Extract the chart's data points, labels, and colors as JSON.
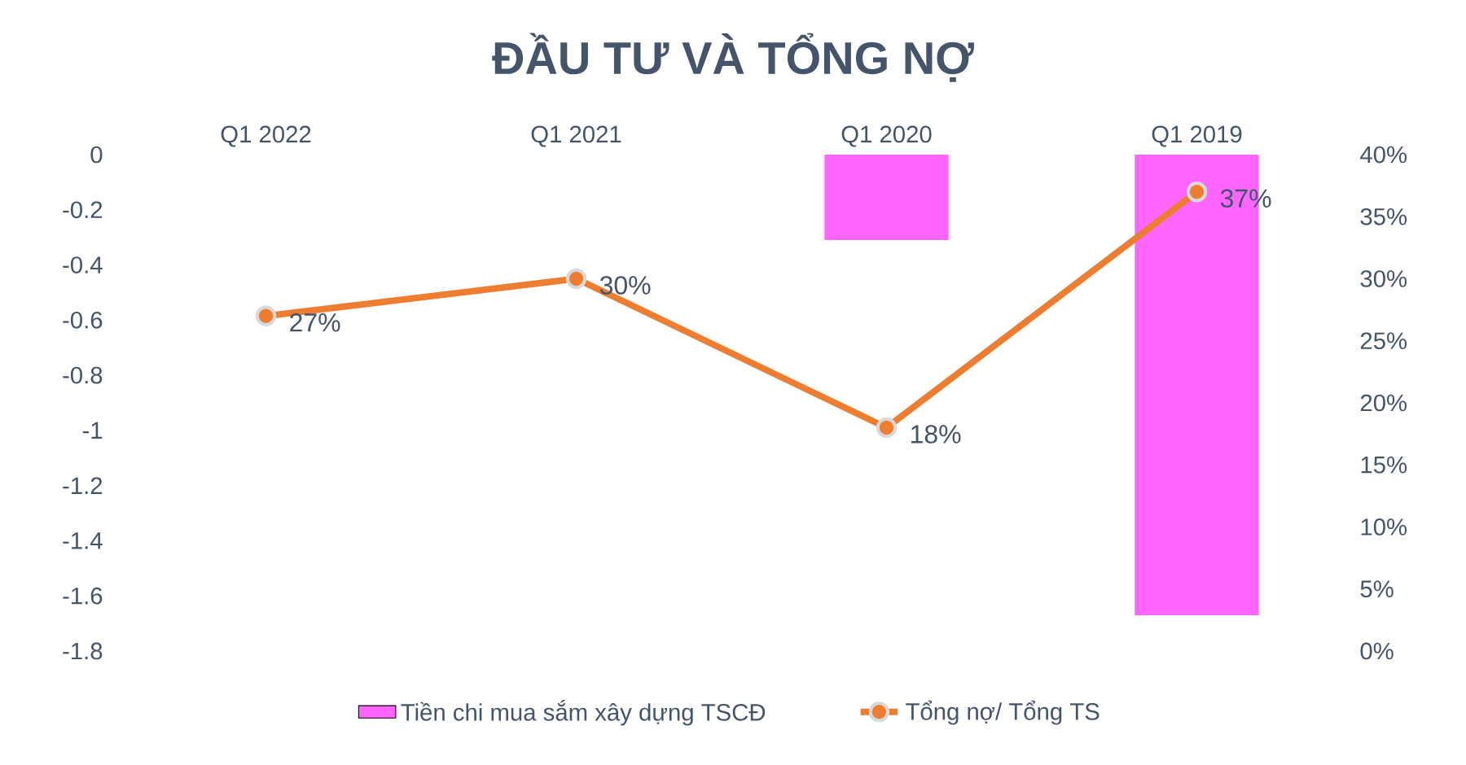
{
  "chart_data": {
    "type": "bar",
    "title": "ĐẦU TƯ VÀ TỔNG NỢ",
    "categories": [
      "Q1 2022",
      "Q1 2021",
      "Q1 2020",
      "Q1 2019"
    ],
    "series": [
      {
        "name": "Tiền chi mua sắm xây dựng TSCĐ",
        "color": "#ff66ff",
        "values": [
          0,
          0,
          -0.31,
          -1.67
        ]
      },
      {
        "name": "Tổng nợ/ Tổng TS",
        "type": "line",
        "axis": "y2",
        "color": "#ed7d31",
        "values": [
          27,
          30,
          18,
          37
        ],
        "value_labels": [
          "27%",
          "30%",
          "18%",
          "37%"
        ]
      }
    ],
    "ylim": [
      -1.8,
      0
    ],
    "yticks": [
      0,
      -0.2,
      -0.4,
      -0.6,
      -0.8,
      -1,
      -1.2,
      -1.4,
      -1.6,
      -1.8
    ],
    "y2lim": [
      0,
      40
    ],
    "y2ticks": [
      {
        "value": 0,
        "label": "0%"
      },
      {
        "value": 5,
        "label": "5%"
      },
      {
        "value": 10,
        "label": "10%"
      },
      {
        "value": 15,
        "label": "15%"
      },
      {
        "value": 20,
        "label": "20%"
      },
      {
        "value": 25,
        "label": "25%"
      },
      {
        "value": 30,
        "label": "30%"
      },
      {
        "value": 35,
        "label": "35%"
      },
      {
        "value": 40,
        "label": "40%"
      }
    ],
    "marker": "circle",
    "legend": "bottom"
  }
}
